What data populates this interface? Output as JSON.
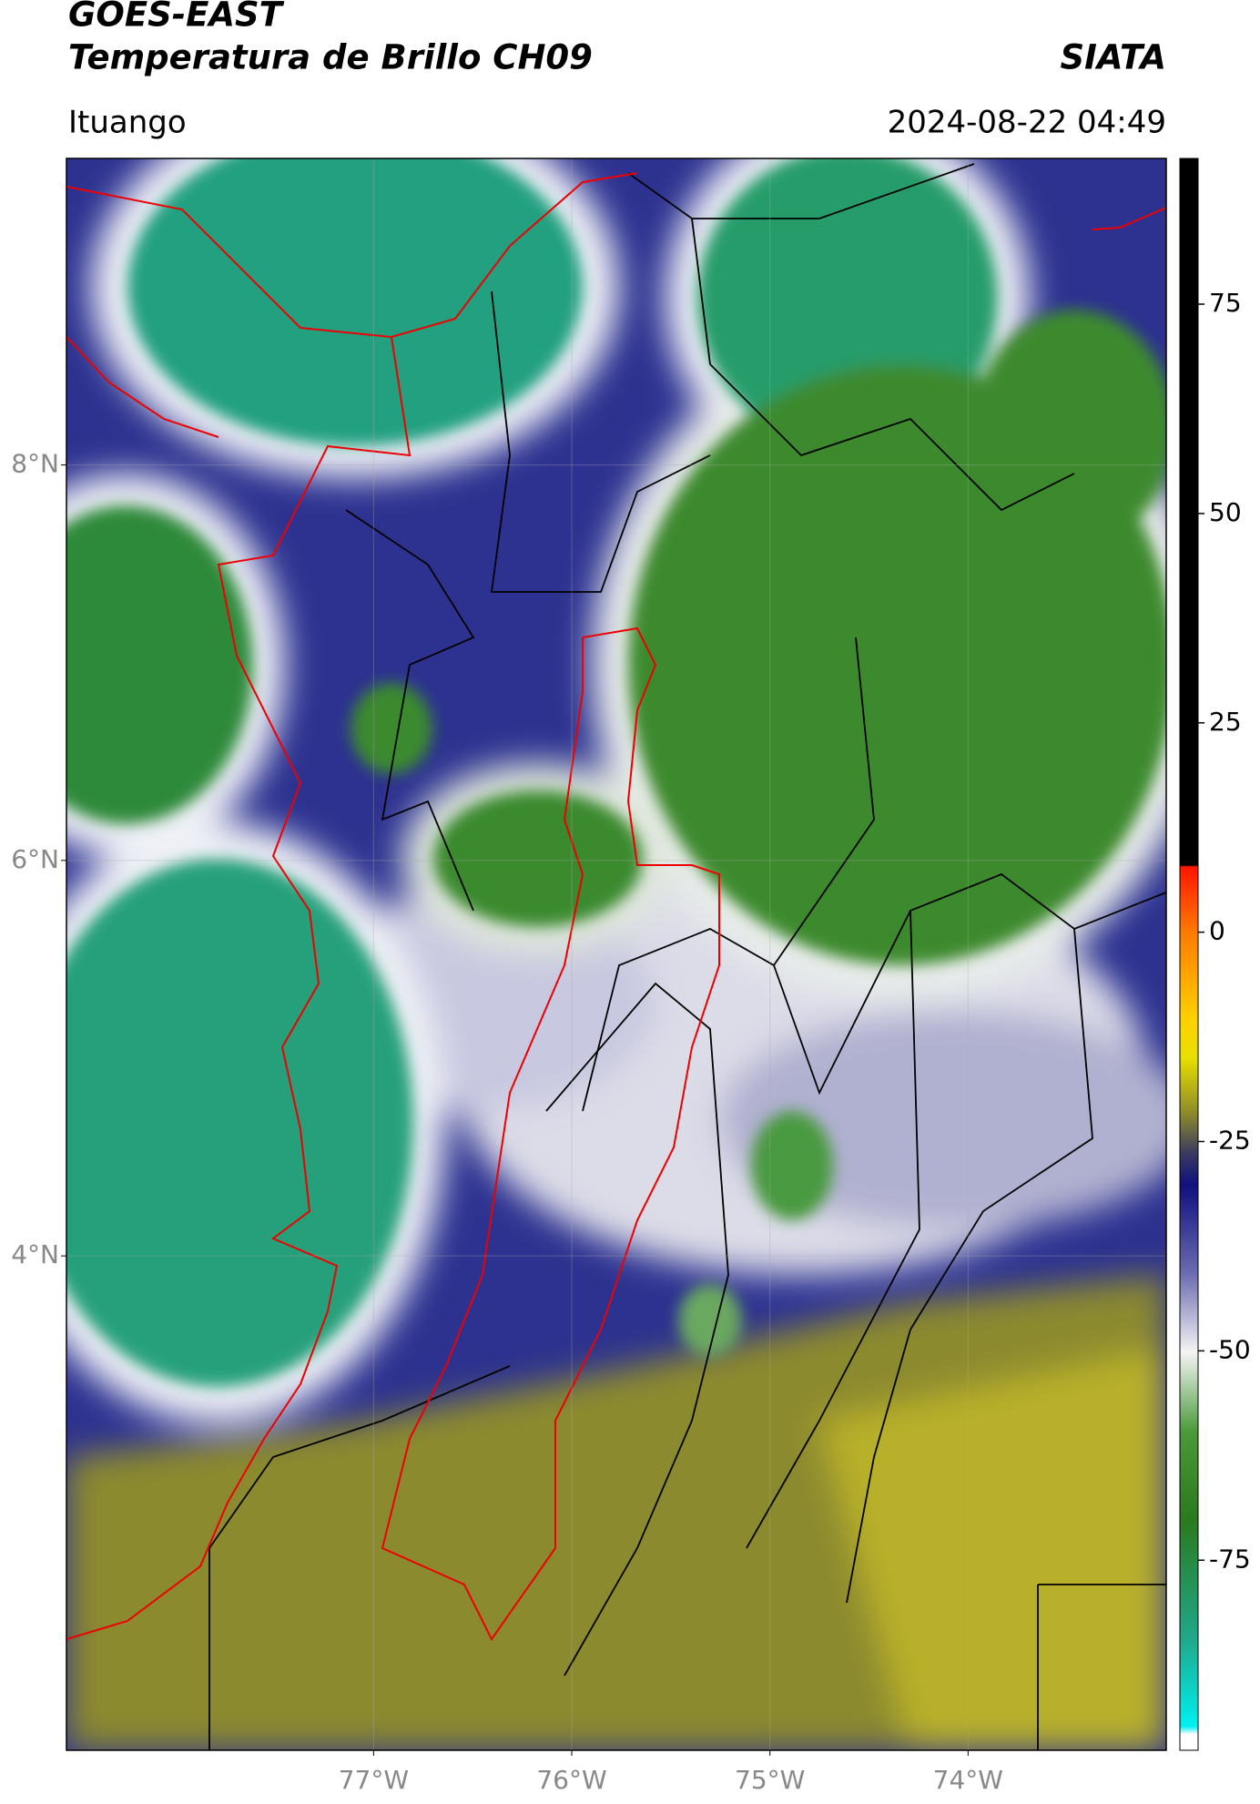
{
  "header": {
    "title": "GOES-EAST",
    "subtitle": "Temperatura de Brillo CH09",
    "agency": "SIATA",
    "location": "Ituango",
    "datetime": "2024-08-22 04:49"
  },
  "map": {
    "xlim": [
      -78.55,
      -73.0
    ],
    "ylim": [
      1.5,
      9.55
    ],
    "xticks": [
      {
        "value": -77,
        "label": "77°W"
      },
      {
        "value": -76,
        "label": "76°W"
      },
      {
        "value": -75,
        "label": "75°W"
      },
      {
        "value": -74,
        "label": "74°W"
      }
    ],
    "yticks": [
      {
        "value": 8,
        "label": "8°N"
      },
      {
        "value": 6,
        "label": "6°N"
      },
      {
        "value": 4,
        "label": "4°N"
      }
    ],
    "grid": true
  },
  "colorbar": {
    "lim": [
      -97.7,
      92.4
    ],
    "ticks": [
      75,
      50,
      25,
      0,
      -25,
      -50,
      -75
    ]
  }
}
